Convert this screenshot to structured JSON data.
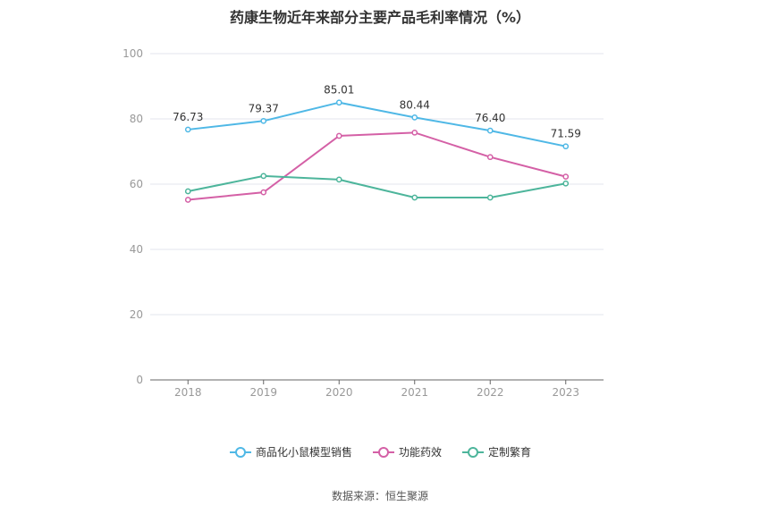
{
  "chart_data": {
    "type": "line",
    "title": "药康生物近年来部分主要产品毛利率情况（%）",
    "categories": [
      "2018",
      "2019",
      "2020",
      "2021",
      "2022",
      "2023"
    ],
    "ylim": [
      0,
      100
    ],
    "yticks": [
      0,
      20,
      40,
      60,
      80,
      100
    ],
    "grid": true,
    "legend_position": "bottom",
    "series": [
      {
        "name": "商品化小鼠模型销售",
        "color": "#4fb8e6",
        "values": [
          76.73,
          79.37,
          85.01,
          80.44,
          76.4,
          71.59
        ],
        "show_labels": true
      },
      {
        "name": "功能药效",
        "color": "#d460a6",
        "values": [
          55.2,
          57.5,
          74.8,
          75.8,
          68.3,
          62.3
        ],
        "show_labels": false
      },
      {
        "name": "定制繁育",
        "color": "#4db59b",
        "values": [
          57.8,
          62.5,
          61.4,
          55.9,
          55.9,
          60.2
        ],
        "show_labels": false
      }
    ]
  },
  "source": "数据来源：恒生聚源"
}
